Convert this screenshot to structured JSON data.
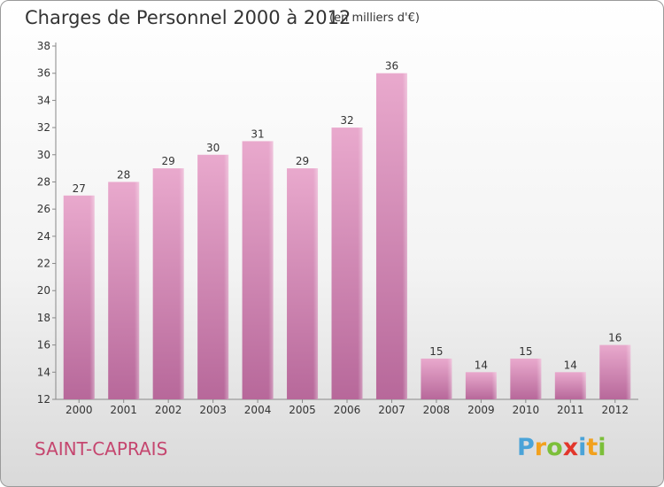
{
  "chart_data": {
    "type": "bar",
    "title": "Charges de Personnel 2000 à 2012",
    "subtitle": "(en milliers d'€)",
    "categories": [
      "2000",
      "2001",
      "2002",
      "2003",
      "2004",
      "2005",
      "2006",
      "2007",
      "2008",
      "2009",
      "2010",
      "2011",
      "2012"
    ],
    "values": [
      27,
      28,
      29,
      30,
      31,
      29,
      32,
      36,
      15,
      14,
      15,
      14,
      16
    ],
    "ylim": [
      12,
      38
    ],
    "yticks": [
      12,
      14,
      16,
      18,
      20,
      22,
      24,
      26,
      28,
      30,
      32,
      34,
      36,
      38
    ],
    "xlabel": "",
    "ylabel": "",
    "grid": false,
    "bar_color": "#d48ab4",
    "bar_color_light": "#e9a9cd",
    "bar_color_dark": "#b7689a"
  },
  "footer": {
    "commune": "SAINT-CAPRAIS",
    "commune_color": "#c5466f",
    "logo_text": "Proxiti",
    "logo_letters": [
      {
        "ch": "P",
        "color": "#4aa3d8"
      },
      {
        "ch": "r",
        "color": "#f2a11e"
      },
      {
        "ch": "o",
        "color": "#7cbf3a"
      },
      {
        "ch": "x",
        "color": "#e2362b"
      },
      {
        "ch": "i",
        "color": "#4aa3d8"
      },
      {
        "ch": "t",
        "color": "#f2a11e"
      },
      {
        "ch": "i",
        "color": "#7cbf3a"
      }
    ]
  }
}
